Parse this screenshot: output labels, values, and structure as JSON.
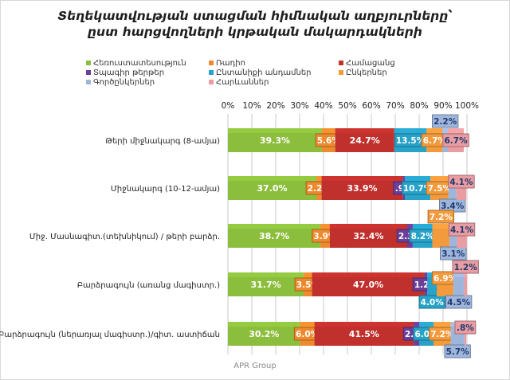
{
  "chart_data": {
    "type": "bar",
    "orientation": "horizontal",
    "stacked": "100%",
    "title": "Տեղեկատվության ստացման հիմնական աղբյուրները՝ ըստ հարցվողների կրթական մակարդակների",
    "categories": [
      "Թերի միջնակարգ (8-ամյա)",
      "Միջնակարգ (10-12-ամյա)",
      "Միջ. Մասնագիտ.(տեխնիկում) / թերի բարձր.",
      "Բարձրագույն (առանց մագիստր.)",
      "Բարձրագույն (ներառյալ մագիստր.)/գիտ. աստիճան"
    ],
    "series": [
      {
        "name": "Հեռուստատեսություն",
        "color": "#8cbe3d",
        "values": [
          39.3,
          37.0,
          38.7,
          31.7,
          30.2
        ],
        "labels": [
          "39.3%",
          "37.0%",
          "38.7%",
          "31.7%",
          "30.2%"
        ]
      },
      {
        "name": "Ռադիո",
        "color": "#ee8a2d",
        "values": [
          5.6,
          2.2,
          3.9,
          3.5,
          6.0
        ],
        "labels": [
          "5.6%",
          "2.2%",
          "3.9%",
          "3.5%",
          "6.0%"
        ]
      },
      {
        "name": "Համացանց",
        "color": "#c0302d",
        "values": [
          24.7,
          33.9,
          32.4,
          47.0,
          41.5
        ],
        "labels": [
          "24.7%",
          "33.9%",
          "32.4%",
          "47.0%",
          "41.5%"
        ]
      },
      {
        "name": "Տպագիր թերթեր",
        "color": "#6a3e99",
        "values": [
          0.0,
          0.9,
          2.3,
          1.2,
          2.3
        ],
        "labels": [
          "",
          ".9%",
          "2.3%",
          "1.2%",
          "2.3%"
        ]
      },
      {
        "name": "Ընտանիքի անդամներ",
        "color": "#27a2c8",
        "values": [
          13.5,
          10.7,
          8.2,
          4.0,
          6.0
        ],
        "labels": [
          "13.5%",
          "10.7%",
          "8.2%",
          "4.0%",
          "6.0%"
        ]
      },
      {
        "name": "Ընկերներ",
        "color": "#f39a3c",
        "values": [
          6.7,
          7.5,
          7.2,
          6.9,
          7.2
        ],
        "labels": [
          "6.7%",
          "7.5%",
          "7.2%",
          "6.9%",
          "7.2%"
        ]
      },
      {
        "name": "Գործընկերներ",
        "color": "#9fb6dc",
        "values": [
          2.2,
          3.4,
          3.1,
          4.5,
          5.7
        ],
        "labels": [
          "2.2%",
          "3.4%",
          "3.1%",
          "4.5%",
          "5.7%"
        ]
      },
      {
        "name": "Հարևաններ",
        "color": "#e99ca1",
        "values": [
          6.7,
          4.1,
          4.1,
          1.2,
          0.8
        ],
        "labels": [
          "6.7%",
          "4.1%",
          "4.1%",
          "1.2%",
          ".8%"
        ]
      }
    ],
    "xlim": [
      0,
      100
    ],
    "xticks": [
      "0%",
      "10%",
      "20%",
      "30%",
      "40%",
      "50%",
      "60%",
      "70%",
      "80%",
      "90%",
      "100%"
    ],
    "legend_position": "top",
    "grid": true
  },
  "footer": {
    "source": "APR Group"
  }
}
